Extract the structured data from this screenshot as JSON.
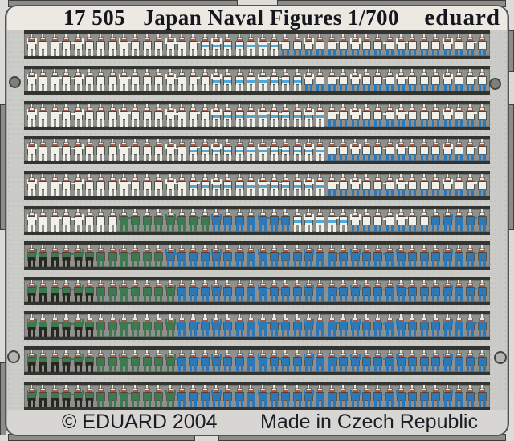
{
  "header": {
    "catalog": "17 505",
    "title": "Japan Naval Figures 1/700",
    "brand": "eduard"
  },
  "footer": {
    "copyright": "© EDUARD 2004",
    "origin": "Made in Czech Republic"
  },
  "palette": {
    "plate": "#cbcbc8",
    "strip": "#8f8f8b",
    "rail": "#33332f",
    "text_dark": "#16161e",
    "whites": "#f1f0e9",
    "sailor_blue": "#2b79b8",
    "belt_blue": "#4fa8d8",
    "uniform_green": "#3d7a52",
    "darktone": "#26281f",
    "flesh": "#aa5a42",
    "cap_white": "#e9e8e2"
  },
  "fret": {
    "description": "11 strips of 1/700 photo-etched painted naval figures",
    "rows": [
      {
        "segments": [
          {
            "variant": "white",
            "count": 15
          },
          {
            "variant": "belt",
            "count": 7
          },
          {
            "variant": "wb",
            "count": 18
          }
        ]
      },
      {
        "segments": [
          {
            "variant": "white",
            "count": 16
          },
          {
            "variant": "belt",
            "count": 8
          },
          {
            "variant": "wb",
            "count": 16
          }
        ]
      },
      {
        "segments": [
          {
            "variant": "white",
            "count": 16
          },
          {
            "variant": "belt",
            "count": 10
          },
          {
            "variant": "wb",
            "count": 14
          }
        ]
      },
      {
        "segments": [
          {
            "variant": "white",
            "count": 14
          },
          {
            "variant": "belt",
            "count": 12
          },
          {
            "variant": "wb",
            "count": 14
          }
        ]
      },
      {
        "segments": [
          {
            "variant": "white",
            "count": 14
          },
          {
            "variant": "belt",
            "count": 12
          },
          {
            "variant": "wb",
            "count": 14
          }
        ]
      },
      {
        "segments": [
          {
            "variant": "white",
            "count": 8
          },
          {
            "variant": "green",
            "count": 8
          },
          {
            "variant": "blue",
            "count": 7
          },
          {
            "variant": "belt",
            "count": 5
          },
          {
            "variant": "wb",
            "count": 7
          },
          {
            "variant": "blue",
            "count": 5
          }
        ]
      },
      {
        "segments": [
          {
            "variant": "gdark",
            "count": 6
          },
          {
            "variant": "green",
            "count": 6
          },
          {
            "variant": "blue",
            "count": 28
          }
        ]
      },
      {
        "segments": [
          {
            "variant": "gdark",
            "count": 6
          },
          {
            "variant": "green",
            "count": 7
          },
          {
            "variant": "blue",
            "count": 27
          }
        ]
      },
      {
        "segments": [
          {
            "variant": "gdark",
            "count": 6
          },
          {
            "variant": "green",
            "count": 7
          },
          {
            "variant": "blue",
            "count": 27
          }
        ]
      },
      {
        "segments": [
          {
            "variant": "gdark",
            "count": 6
          },
          {
            "variant": "green",
            "count": 7
          },
          {
            "variant": "blue",
            "count": 27
          }
        ]
      },
      {
        "segments": [
          {
            "variant": "gdark",
            "count": 6
          },
          {
            "variant": "green",
            "count": 7
          },
          {
            "variant": "blue",
            "count": 27
          }
        ]
      }
    ]
  }
}
